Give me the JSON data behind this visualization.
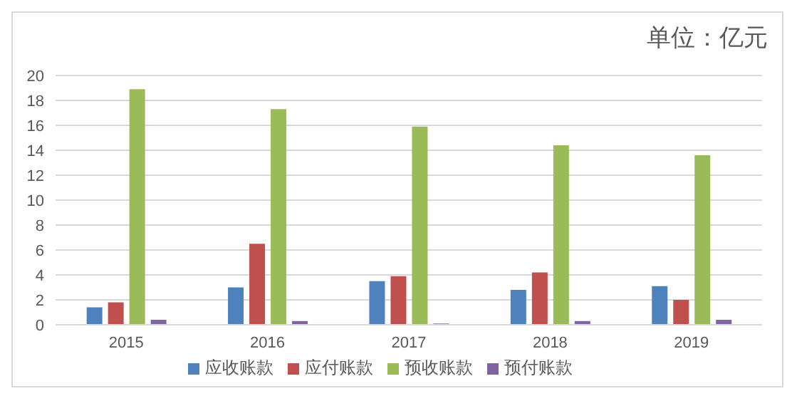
{
  "chart_data": {
    "type": "bar",
    "subtitle": "单位：亿元",
    "categories": [
      "2015",
      "2016",
      "2017",
      "2018",
      "2019"
    ],
    "series": [
      {
        "name": "应收账款",
        "color": "#4f81bd",
        "values": [
          1.4,
          3.0,
          3.5,
          2.8,
          3.1
        ]
      },
      {
        "name": "应付账款",
        "color": "#c0504d",
        "values": [
          1.8,
          6.5,
          3.9,
          4.2,
          2.0
        ]
      },
      {
        "name": "预收账款",
        "color": "#9bbb59",
        "values": [
          18.9,
          17.3,
          15.9,
          14.4,
          13.6
        ]
      },
      {
        "name": "预付账款",
        "color": "#8064a2",
        "values": [
          0.4,
          0.3,
          0.1,
          0.3,
          0.4
        ]
      }
    ],
    "ylim": [
      0,
      20
    ],
    "yticks": [
      0,
      2,
      4,
      6,
      8,
      10,
      12,
      14,
      16,
      18,
      20
    ],
    "grid": "y",
    "legend": "bottom"
  }
}
